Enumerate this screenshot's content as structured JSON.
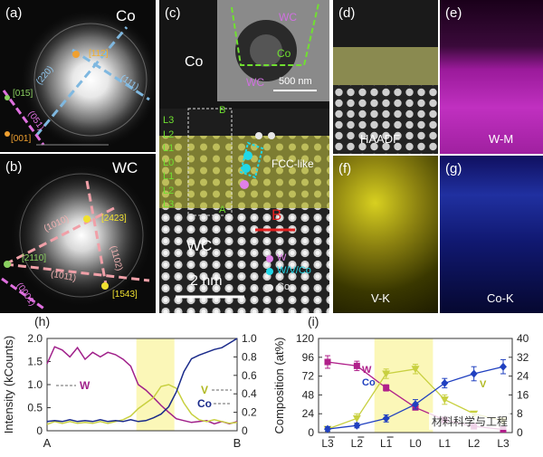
{
  "panels": {
    "a": {
      "label": "(a)",
      "element": "Co",
      "indices": [
        "[112]",
        "(220)",
        "(111)",
        "[015]",
        "(051)",
        "[001]"
      ]
    },
    "b": {
      "label": "(b)",
      "element": "WC",
      "indices": [
        "(1010)",
        "[2423]",
        "[2110]",
        "(1011)",
        "(1102)",
        "(0001)",
        "[1543]"
      ]
    },
    "c": {
      "label": "(c)",
      "top_label": "Co",
      "inset_wc_top": "WC",
      "inset_co": "Co",
      "inset_wc_bottom": "WC",
      "inset_scale": "500 nm",
      "layers": [
        "L3",
        "L2",
        "L1",
        "L0",
        "L1",
        "L2",
        "L3"
      ],
      "marker_b": "B",
      "marker_a": "A",
      "marker_b2": "B",
      "fcc": "FCC-like",
      "wc": "WC",
      "scale": "2 nm",
      "legend": [
        {
          "text": "W",
          "color": "#e080e8"
        },
        {
          "text": "W/V/Co",
          "color": "#20d8e8"
        },
        {
          "text": "Co",
          "color": "#e8e8e8"
        }
      ]
    },
    "d": {
      "label": "(d)",
      "name": "HAADF"
    },
    "e": {
      "label": "(e)",
      "name": "W-M"
    },
    "f": {
      "label": "(f)",
      "name": "V-K"
    },
    "g": {
      "label": "(g)",
      "name": "Co-K"
    }
  },
  "chart_data": [
    {
      "type": "line",
      "panel": "(h)",
      "ylabel": "Intensity (kCounts)",
      "y2label": "",
      "xlabel_left": "A",
      "xlabel_right": "B",
      "ylim": [
        0,
        2.0
      ],
      "y2lim": [
        0,
        1.0
      ],
      "yticks": [
        "0",
        "0.5",
        "1.0",
        "1.5",
        "2.0"
      ],
      "y2ticks": [
        "0",
        "0.2",
        "0.4",
        "0.6",
        "0.8",
        "1.0"
      ],
      "highlight": [
        0.47,
        0.67
      ],
      "series": [
        {
          "name": "W",
          "color": "#a0208a",
          "axis": "left",
          "x": [
            0,
            0.04,
            0.08,
            0.12,
            0.16,
            0.2,
            0.24,
            0.28,
            0.32,
            0.36,
            0.4,
            0.44,
            0.48,
            0.52,
            0.56,
            0.6,
            0.64,
            0.68,
            0.72,
            0.76,
            0.8,
            0.84,
            0.88,
            0.92,
            0.96,
            1.0
          ],
          "y": [
            1.45,
            1.82,
            1.75,
            1.6,
            1.8,
            1.55,
            1.7,
            1.6,
            1.7,
            1.65,
            1.55,
            1.4,
            1.0,
            0.88,
            0.72,
            0.55,
            0.4,
            0.26,
            0.22,
            0.18,
            0.2,
            0.22,
            0.15,
            0.2,
            0.15,
            0.2
          ]
        },
        {
          "name": "V",
          "color": "#c8d040",
          "axis": "right",
          "x": [
            0,
            0.04,
            0.08,
            0.12,
            0.16,
            0.2,
            0.24,
            0.28,
            0.32,
            0.36,
            0.4,
            0.44,
            0.48,
            0.52,
            0.56,
            0.6,
            0.64,
            0.68,
            0.72,
            0.76,
            0.8,
            0.84,
            0.88,
            0.92,
            0.96,
            1.0
          ],
          "y": [
            0.07,
            0.1,
            0.08,
            0.1,
            0.08,
            0.09,
            0.08,
            0.1,
            0.08,
            0.1,
            0.12,
            0.16,
            0.24,
            0.3,
            0.36,
            0.48,
            0.5,
            0.46,
            0.3,
            0.18,
            0.12,
            0.1,
            0.12,
            0.1,
            0.08,
            0.09
          ]
        },
        {
          "name": "Co",
          "color": "#1a2a8a",
          "axis": "right",
          "x": [
            0,
            0.04,
            0.08,
            0.12,
            0.16,
            0.2,
            0.24,
            0.28,
            0.32,
            0.36,
            0.4,
            0.44,
            0.48,
            0.52,
            0.56,
            0.6,
            0.64,
            0.68,
            0.72,
            0.76,
            0.8,
            0.84,
            0.88,
            0.92,
            0.96,
            1.0
          ],
          "y": [
            0.1,
            0.11,
            0.1,
            0.12,
            0.1,
            0.11,
            0.1,
            0.12,
            0.1,
            0.11,
            0.1,
            0.12,
            0.1,
            0.11,
            0.14,
            0.18,
            0.26,
            0.42,
            0.64,
            0.78,
            0.82,
            0.85,
            0.88,
            0.9,
            0.95,
            1.0
          ]
        }
      ],
      "labels": {
        "w": "W",
        "v": "V",
        "co": "Co"
      }
    },
    {
      "type": "line",
      "panel": "(i)",
      "ylabel": "Composition (at%)",
      "categories": [
        "L3",
        "L2",
        "L1",
        "L0",
        "L1",
        "L2",
        "L3"
      ],
      "bar_over": [
        true,
        true,
        true,
        false,
        false,
        false,
        false
      ],
      "ylim": [
        0,
        120
      ],
      "y2lim": [
        0,
        40
      ],
      "yticks": [
        "0",
        "24",
        "48",
        "72",
        "96",
        "120"
      ],
      "y2ticks": [
        "0",
        "8",
        "16",
        "24",
        "32",
        "40"
      ],
      "highlight": [
        1.6,
        3.6
      ],
      "series": [
        {
          "name": "W",
          "color": "#b0208a",
          "marker": "square",
          "axis": "left",
          "values": [
            90,
            85,
            57,
            32,
            16,
            8,
            4
          ],
          "errors": [
            8,
            6,
            4,
            3,
            2,
            2,
            2
          ]
        },
        {
          "name": "V",
          "color": "#c8d040",
          "marker": "triangle",
          "axis": "right",
          "values": [
            1.5,
            6,
            25,
            27,
            14,
            8,
            5
          ],
          "errors": [
            1,
            2,
            2,
            2,
            2,
            1,
            1
          ]
        },
        {
          "name": "Co",
          "color": "#2040c0",
          "marker": "diamond",
          "axis": "right",
          "values": [
            1.5,
            3,
            6,
            12,
            21,
            25,
            28
          ],
          "errors": [
            1,
            1,
            1.5,
            2,
            2,
            3,
            3
          ]
        }
      ],
      "labels": {
        "w": "W",
        "co": "Co",
        "v": "V"
      }
    }
  ],
  "watermark": "材料科学与工程"
}
